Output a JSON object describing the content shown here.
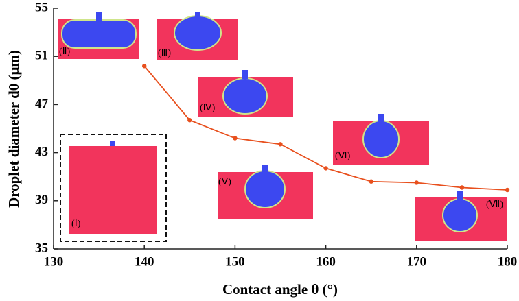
{
  "chart_data": {
    "type": "line",
    "x": [
      140,
      145,
      150,
      155,
      160,
      165,
      170,
      175,
      180
    ],
    "series": [
      {
        "name": "Droplet diameter",
        "color": "#e8501e",
        "values": [
          50.2,
          45.7,
          44.2,
          43.7,
          41.7,
          40.6,
          40.5,
          40.1,
          39.9
        ]
      }
    ],
    "xlim": [
      130,
      180
    ],
    "xticks": [
      130,
      140,
      150,
      160,
      170,
      180
    ],
    "ylim": [
      35,
      55
    ],
    "yticks": [
      35,
      39,
      43,
      47,
      51,
      55
    ],
    "x_label": "Contact angle   θ (°)",
    "y_label": "Droplet diameter   d0 (μm)",
    "annotations": [
      "(Ⅰ)",
      "(Ⅱ)",
      "(Ⅲ)",
      "(Ⅳ)",
      "(Ⅴ)",
      "(Ⅵ)",
      "(Ⅶ)"
    ]
  }
}
